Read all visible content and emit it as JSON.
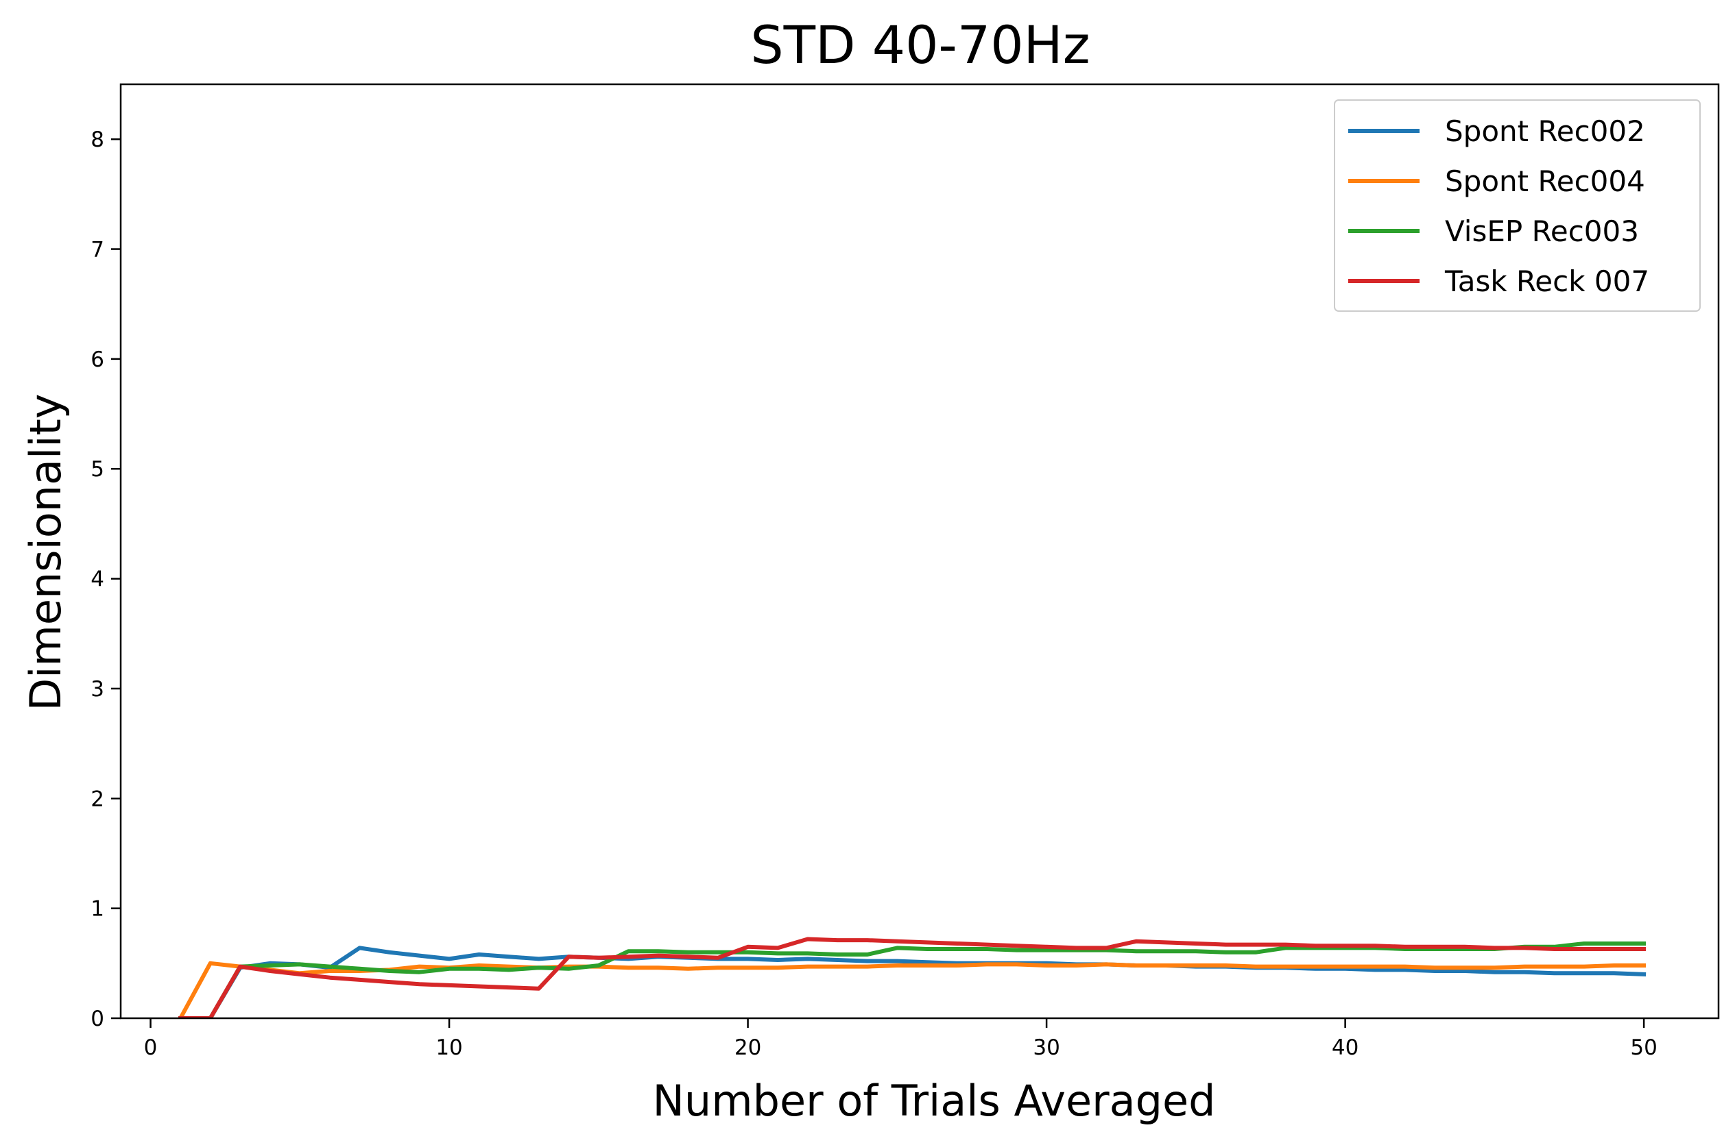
{
  "chart_data": {
    "type": "line",
    "title": "STD 40-70Hz",
    "xlabel": "Number of Trials Averaged",
    "ylabel": "Dimensionality",
    "xlim": [
      -1,
      52.5
    ],
    "ylim": [
      0,
      8.5
    ],
    "xticks": [
      0,
      10,
      20,
      30,
      40,
      50
    ],
    "xtick_labels": [
      "0",
      "10",
      "20",
      "30",
      "40",
      "50"
    ],
    "yticks": [
      0,
      1,
      2,
      3,
      4,
      5,
      6,
      7,
      8
    ],
    "ytick_labels": [
      "0",
      "1",
      "2",
      "3",
      "4",
      "5",
      "6",
      "7",
      "8"
    ],
    "grid": false,
    "legend_position": "top-right",
    "series": [
      {
        "name": "Spont Rec002",
        "color": "#1f77b4",
        "x": [
          1,
          2,
          3,
          4,
          5,
          6,
          7,
          8,
          9,
          10,
          11,
          12,
          13,
          14,
          15,
          16,
          17,
          18,
          19,
          20,
          21,
          22,
          23,
          24,
          25,
          26,
          27,
          28,
          29,
          30,
          31,
          32,
          33,
          34,
          35,
          36,
          37,
          38,
          39,
          40,
          41,
          42,
          43,
          44,
          45,
          46,
          47,
          48,
          49,
          50
        ],
        "y": [
          0,
          0,
          0.46,
          0.5,
          0.49,
          0.46,
          0.64,
          0.6,
          0.57,
          0.54,
          0.58,
          0.56,
          0.54,
          0.56,
          0.55,
          0.54,
          0.56,
          0.55,
          0.54,
          0.54,
          0.53,
          0.54,
          0.53,
          0.52,
          0.52,
          0.51,
          0.5,
          0.5,
          0.5,
          0.5,
          0.49,
          0.49,
          0.48,
          0.48,
          0.47,
          0.47,
          0.46,
          0.46,
          0.45,
          0.45,
          0.44,
          0.44,
          0.43,
          0.43,
          0.42,
          0.42,
          0.41,
          0.41,
          0.41,
          0.4
        ]
      },
      {
        "name": "Spont Rec004",
        "color": "#ff7f0e",
        "x": [
          1,
          2,
          3,
          4,
          5,
          6,
          7,
          8,
          9,
          10,
          11,
          12,
          13,
          14,
          15,
          16,
          17,
          18,
          19,
          20,
          21,
          22,
          23,
          24,
          25,
          26,
          27,
          28,
          29,
          30,
          31,
          32,
          33,
          34,
          35,
          36,
          37,
          38,
          39,
          40,
          41,
          42,
          43,
          44,
          45,
          46,
          47,
          48,
          49,
          50
        ],
        "y": [
          0,
          0.5,
          0.47,
          0.44,
          0.41,
          0.43,
          0.43,
          0.44,
          0.47,
          0.46,
          0.48,
          0.47,
          0.46,
          0.47,
          0.47,
          0.46,
          0.46,
          0.45,
          0.46,
          0.46,
          0.46,
          0.47,
          0.47,
          0.47,
          0.48,
          0.48,
          0.48,
          0.49,
          0.49,
          0.48,
          0.48,
          0.49,
          0.48,
          0.48,
          0.48,
          0.48,
          0.47,
          0.47,
          0.47,
          0.47,
          0.47,
          0.47,
          0.46,
          0.46,
          0.46,
          0.47,
          0.47,
          0.47,
          0.48,
          0.48
        ]
      },
      {
        "name": "VisEP Rec003",
        "color": "#2ca02c",
        "x": [
          1,
          2,
          3,
          4,
          5,
          6,
          7,
          8,
          9,
          10,
          11,
          12,
          13,
          14,
          15,
          16,
          17,
          18,
          19,
          20,
          21,
          22,
          23,
          24,
          25,
          26,
          27,
          28,
          29,
          30,
          31,
          32,
          33,
          34,
          35,
          36,
          37,
          38,
          39,
          40,
          41,
          42,
          43,
          44,
          45,
          46,
          47,
          48,
          49,
          50
        ],
        "y": [
          0,
          0,
          0.47,
          0.48,
          0.49,
          0.47,
          0.45,
          0.43,
          0.42,
          0.45,
          0.45,
          0.44,
          0.46,
          0.45,
          0.48,
          0.61,
          0.61,
          0.6,
          0.6,
          0.6,
          0.59,
          0.59,
          0.58,
          0.58,
          0.64,
          0.63,
          0.63,
          0.63,
          0.62,
          0.62,
          0.62,
          0.62,
          0.61,
          0.61,
          0.61,
          0.6,
          0.6,
          0.64,
          0.64,
          0.64,
          0.64,
          0.63,
          0.63,
          0.63,
          0.63,
          0.65,
          0.65,
          0.68,
          0.68,
          0.68
        ]
      },
      {
        "name": "Task Reck 007",
        "color": "#d62728",
        "x": [
          1,
          2,
          3,
          4,
          5,
          6,
          7,
          8,
          9,
          10,
          11,
          12,
          13,
          14,
          15,
          16,
          17,
          18,
          19,
          20,
          21,
          22,
          23,
          24,
          25,
          26,
          27,
          28,
          29,
          30,
          31,
          32,
          33,
          34,
          35,
          36,
          37,
          38,
          39,
          40,
          41,
          42,
          43,
          44,
          45,
          46,
          47,
          48,
          49,
          50
        ],
        "y": [
          0,
          0,
          0.47,
          0.43,
          0.4,
          0.37,
          0.35,
          0.33,
          0.31,
          0.3,
          0.29,
          0.28,
          0.27,
          0.56,
          0.55,
          0.56,
          0.57,
          0.56,
          0.55,
          0.65,
          0.64,
          0.72,
          0.71,
          0.71,
          0.7,
          0.69,
          0.68,
          0.67,
          0.66,
          0.65,
          0.64,
          0.64,
          0.7,
          0.69,
          0.68,
          0.67,
          0.67,
          0.67,
          0.66,
          0.66,
          0.66,
          0.65,
          0.65,
          0.65,
          0.64,
          0.64,
          0.63,
          0.63,
          0.63,
          0.63
        ]
      }
    ]
  }
}
